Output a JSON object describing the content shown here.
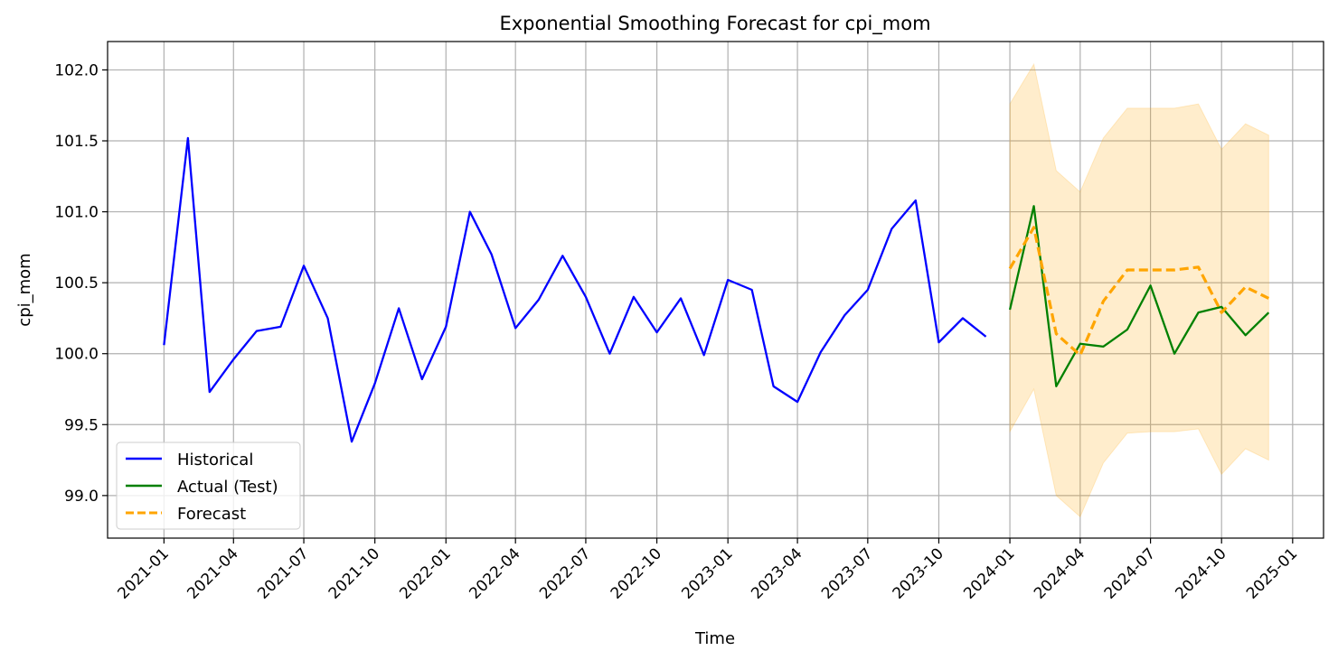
{
  "chart_data": {
    "type": "line",
    "title": "Exponential Smoothing Forecast for cpi_mom",
    "xlabel": "Time",
    "ylabel": "cpi_mom",
    "xlim": [
      "2020-10-20",
      "2025-02-10"
    ],
    "ylim": [
      98.7,
      102.2
    ],
    "grid": true,
    "legend_position": "lower-left",
    "x_ticks": [
      "2021-01",
      "2021-04",
      "2021-07",
      "2021-10",
      "2022-01",
      "2022-04",
      "2022-07",
      "2022-10",
      "2023-01",
      "2023-04",
      "2023-07",
      "2023-10",
      "2024-01",
      "2024-04",
      "2024-07",
      "2024-10",
      "2025-01"
    ],
    "y_ticks": [
      "99.0",
      "99.5",
      "100.0",
      "100.5",
      "101.0",
      "101.5",
      "102.0"
    ],
    "series": [
      {
        "name": "Historical",
        "color": "#0000ff",
        "style": "solid",
        "x": [
          "2021-01",
          "2021-02",
          "2021-03",
          "2021-04",
          "2021-05",
          "2021-06",
          "2021-07",
          "2021-08",
          "2021-09",
          "2021-10",
          "2021-11",
          "2021-12",
          "2022-01",
          "2022-02",
          "2022-03",
          "2022-04",
          "2022-05",
          "2022-06",
          "2022-07",
          "2022-08",
          "2022-09",
          "2022-10",
          "2022-11",
          "2022-12",
          "2023-01",
          "2023-02",
          "2023-03",
          "2023-04",
          "2023-05",
          "2023-06",
          "2023-07",
          "2023-08",
          "2023-09",
          "2023-10",
          "2023-11",
          "2023-12"
        ],
        "values": [
          100.06,
          101.52,
          99.73,
          99.96,
          100.16,
          100.19,
          100.62,
          100.25,
          99.38,
          99.79,
          100.32,
          99.82,
          100.19,
          101.0,
          100.7,
          100.18,
          100.38,
          100.69,
          100.4,
          100.0,
          100.4,
          100.15,
          100.39,
          99.99,
          100.52,
          100.45,
          99.77,
          99.66,
          100.01,
          100.27,
          100.45,
          100.88,
          101.08,
          100.08,
          100.25,
          100.12
        ]
      },
      {
        "name": "Actual (Test)",
        "color": "#008000",
        "style": "solid",
        "x": [
          "2024-01",
          "2024-02",
          "2024-03",
          "2024-04",
          "2024-05",
          "2024-06",
          "2024-07",
          "2024-08",
          "2024-09",
          "2024-10",
          "2024-11",
          "2024-12"
        ],
        "values": [
          100.31,
          101.04,
          99.77,
          100.07,
          100.05,
          100.17,
          100.48,
          100.0,
          100.29,
          100.33,
          100.13,
          100.29
        ]
      },
      {
        "name": "Forecast",
        "color": "#ffa500",
        "style": "dashed",
        "x": [
          "2024-01",
          "2024-02",
          "2024-03",
          "2024-04",
          "2024-05",
          "2024-06",
          "2024-07",
          "2024-08",
          "2024-09",
          "2024-10",
          "2024-11",
          "2024-12"
        ],
        "values": [
          100.6,
          100.89,
          100.14,
          99.99,
          100.37,
          100.59,
          100.59,
          100.59,
          100.61,
          100.29,
          100.47,
          100.39
        ],
        "lower": [
          99.45,
          99.75,
          99.0,
          98.85,
          99.23,
          99.44,
          99.45,
          99.45,
          99.47,
          99.15,
          99.33,
          99.25
        ],
        "upper": [
          101.76,
          102.04,
          101.29,
          101.14,
          101.52,
          101.73,
          101.73,
          101.73,
          101.76,
          101.44,
          101.62,
          101.54
        ]
      }
    ],
    "band_color": "#ffa500",
    "legend_entries": [
      "Historical",
      "Actual (Test)",
      "Forecast"
    ]
  }
}
